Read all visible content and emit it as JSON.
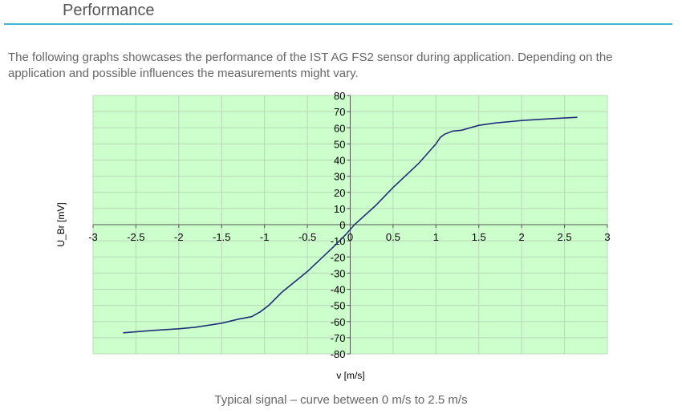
{
  "header": {
    "title": "Performance"
  },
  "intro": "The following graphs showcases the performance of the IST AG FS2 sensor during application. Depending on the application and possible influences the measurements might vary.",
  "caption": "Typical signal – curve between 0 m/s to 2.5 m/s",
  "chart_data": {
    "type": "line",
    "title": "",
    "xlabel": "v [m/s]",
    "ylabel": "U_Br [mV]",
    "xlim": [
      -3,
      3
    ],
    "ylim": [
      -80,
      80
    ],
    "xticks": [
      -3,
      -2.5,
      -2,
      -1.5,
      -1,
      -0.5,
      0,
      0.5,
      1,
      1.5,
      2,
      2.5,
      3
    ],
    "yticks": [
      -80,
      -70,
      -60,
      -50,
      -40,
      -30,
      -20,
      -10,
      0,
      10,
      20,
      30,
      40,
      50,
      60,
      70,
      80
    ],
    "grid": true,
    "background": "#ccffcc",
    "line_color": "#1f2f7a",
    "series": [
      {
        "x": [
          -2.65,
          -2.3,
          -2.0,
          -1.8,
          -1.5,
          -1.3,
          -1.15,
          -1.05,
          -0.95,
          -0.8,
          -0.5,
          -0.2,
          -0.05,
          0.05,
          0.3,
          0.5,
          0.7,
          0.8,
          0.9,
          1.0,
          1.05,
          1.1,
          1.2,
          1.3,
          1.5,
          1.7,
          2.0,
          2.3,
          2.65
        ],
        "y": [
          -67,
          -65.5,
          -64.5,
          -63.5,
          -61,
          -58.5,
          -57,
          -54,
          -50,
          -42,
          -29,
          -14,
          -6,
          0,
          12,
          23,
          33,
          38,
          44,
          50,
          54,
          56,
          58,
          58.5,
          61.5,
          63,
          64.5,
          65.5,
          66.5
        ]
      }
    ]
  }
}
